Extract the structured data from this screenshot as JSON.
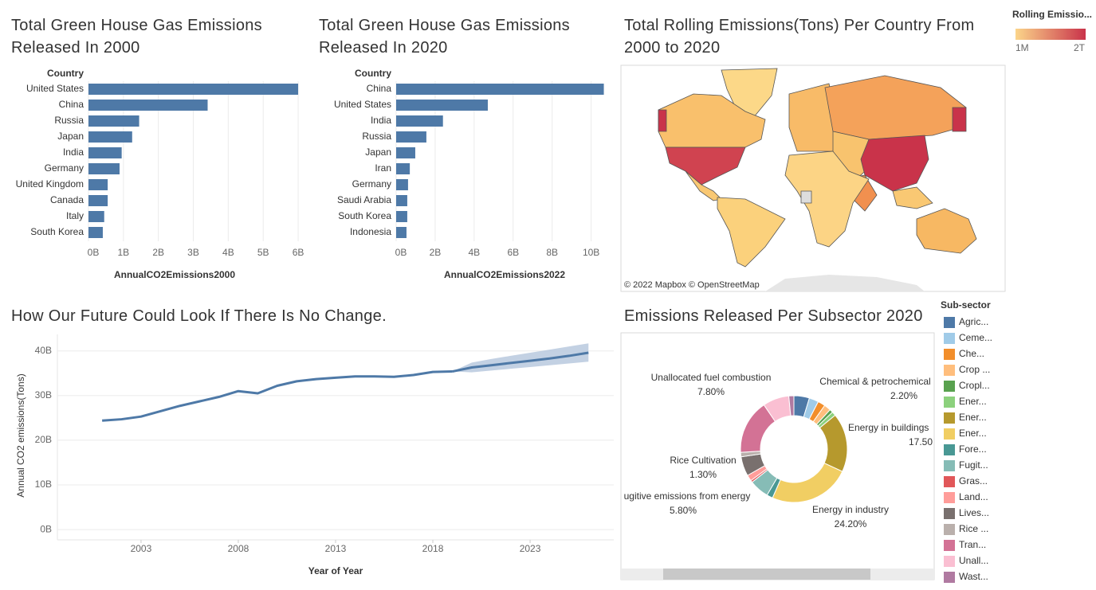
{
  "chart_data": [
    {
      "type": "bar",
      "title": "Total Green House Gas Emissions Released In 2000",
      "category_header": "Country",
      "categories": [
        "United States",
        "China",
        "Russia",
        "Japan",
        "India",
        "Germany",
        "United Kingdom",
        "Canada",
        "Italy",
        "South Korea"
      ],
      "values": [
        6000000000.0,
        3410000000.0,
        1450000000.0,
        1250000000.0,
        950000000.0,
        890000000.0,
        550000000.0,
        550000000.0,
        450000000.0,
        410000000.0
      ],
      "color": "#4e79a7",
      "xlim": [
        0,
        6250000000.0
      ],
      "xticks": [
        {
          "value": 0,
          "label": "0B"
        },
        {
          "value": 1000000000.0,
          "label": "1B"
        },
        {
          "value": 2000000000.0,
          "label": "2B"
        },
        {
          "value": 3000000000.0,
          "label": "3B"
        },
        {
          "value": 4000000000.0,
          "label": "4B"
        },
        {
          "value": 5000000000.0,
          "label": "5B"
        },
        {
          "value": 6000000000.0,
          "label": "6B"
        }
      ],
      "xlabel": "AnnualCO2Emissions2000",
      "grid": true
    },
    {
      "type": "bar",
      "title": "Total Green House Gas Emissions Released In 2020",
      "category_header": "Country",
      "categories": [
        "China",
        "United States",
        "India",
        "Russia",
        "Japan",
        "Iran",
        "Germany",
        "Saudi Arabia",
        "South Korea",
        "Indonesia"
      ],
      "values": [
        10650000000.0,
        4700000000.0,
        2400000000.0,
        1550000000.0,
        980000000.0,
        700000000.0,
        610000000.0,
        570000000.0,
        570000000.0,
        530000000.0
      ],
      "color": "#4e79a7",
      "xlim": [
        0,
        11200000000.0
      ],
      "xticks": [
        {
          "value": 0,
          "label": "0B"
        },
        {
          "value": 2000000000.0,
          "label": "2B"
        },
        {
          "value": 4000000000.0,
          "label": "4B"
        },
        {
          "value": 6000000000.0,
          "label": "6B"
        },
        {
          "value": 8000000000.0,
          "label": "8B"
        },
        {
          "value": 10000000000.0,
          "label": "10B"
        }
      ],
      "xlabel": "AnnualCO2Emissions2022",
      "grid": true
    },
    {
      "type": "map",
      "title": "Total Rolling Emissions(Tons) Per Country From 2000 to 2020",
      "legend_title": "Rolling Emissio...",
      "color_scale_labels": [
        "1M",
        "2T"
      ],
      "colors": [
        "#fbd58a",
        "#c9334a"
      ],
      "attribution": "© 2022 Mapbox  © OpenStreetMap"
    },
    {
      "type": "line",
      "title": "How Our Future Could Look If There Is No Change.",
      "x": [
        2001,
        2002,
        2003,
        2004,
        2005,
        2006,
        2007,
        2008,
        2009,
        2010,
        2011,
        2012,
        2013,
        2014,
        2015,
        2016,
        2017,
        2018,
        2019,
        2020,
        2021,
        2022,
        2023,
        2024,
        2025,
        2026
      ],
      "series": [
        {
          "color": "#4e79a7",
          "values": [
            24400000000.0,
            24700000000.0,
            25300000000.0,
            26500000000.0,
            27700000000.0,
            28700000000.0,
            29700000000.0,
            31000000000.0,
            30500000000.0,
            32200000000.0,
            33200000000.0,
            33700000000.0,
            34000000000.0,
            34300000000.0,
            34300000000.0,
            34200000000.0,
            34600000000.0,
            35300000000.0,
            35400000000.0,
            null,
            null,
            null,
            null,
            null,
            null,
            null
          ]
        },
        {
          "color": "#4e79a7",
          "values": [
            null,
            null,
            null,
            null,
            null,
            null,
            null,
            null,
            null,
            null,
            null,
            null,
            null,
            null,
            null,
            null,
            null,
            null,
            35400000000.0,
            36300000000.0,
            36800000000.0,
            37300000000.0,
            37800000000.0,
            38300000000.0,
            38900000000.0,
            39600000000.0
          ]
        }
      ],
      "band": {
        "color": "#b8c9de",
        "lower": [
          null,
          null,
          null,
          null,
          null,
          null,
          null,
          null,
          null,
          null,
          null,
          null,
          null,
          null,
          null,
          null,
          null,
          null,
          35400000000.0,
          35200000000.0,
          35600000000.0,
          36000000000.0,
          36400000000.0,
          36800000000.0,
          37200000000.0,
          37600000000.0
        ],
        "upper": [
          null,
          null,
          null,
          null,
          null,
          null,
          null,
          null,
          null,
          null,
          null,
          null,
          null,
          null,
          null,
          null,
          null,
          null,
          35400000000.0,
          37400000000.0,
          38200000000.0,
          38900000000.0,
          39600000000.0,
          40300000000.0,
          41000000000.0,
          41700000000.0
        ]
      },
      "xlim": [
        1998.7,
        2027.3
      ],
      "xticks": [
        2003,
        2008,
        2013,
        2018,
        2023
      ],
      "ylim": [
        -2300000000.0,
        43700000000.0
      ],
      "yticks": [
        {
          "value": 0,
          "label": "0B"
        },
        {
          "value": 10000000000.0,
          "label": "10B"
        },
        {
          "value": 20000000000.0,
          "label": "20B"
        },
        {
          "value": 30000000000.0,
          "label": "30B"
        },
        {
          "value": 40000000000.0,
          "label": "40B"
        }
      ],
      "xlabel": "Year of Year",
      "ylabel": "Annual CO2 emissions(Tons)",
      "grid": true
    },
    {
      "type": "pie",
      "donut": true,
      "title": "Emissions Released Per Subsector 2020",
      "legend_title": "Sub-sector",
      "categories": [
        "Agric...",
        "Ceme...",
        "Che...",
        "Crop ...",
        "Cropl...",
        "Ener...",
        "Ener...",
        "Ener...",
        "Fore...",
        "Fugit...",
        "Gras...",
        "Land...",
        "Lives...",
        "Rice ...",
        "Tran...",
        "Unall...",
        "Wast..."
      ],
      "values": [
        4.6,
        2.8,
        2.2,
        2.0,
        1.0,
        1.2,
        17.5,
        24.2,
        1.8,
        5.8,
        0.6,
        1.8,
        5.8,
        1.3,
        16.2,
        7.8,
        1.5
      ],
      "colors": [
        "#4e79a7",
        "#a0cbe8",
        "#f28e2b",
        "#ffbe7d",
        "#59a14f",
        "#8cd17d",
        "#b6992d",
        "#f1ce63",
        "#499894",
        "#86bcb6",
        "#e15759",
        "#ff9d9a",
        "#79706e",
        "#bab0ac",
        "#d37295",
        "#fabfd2",
        "#b07aa1"
      ],
      "slice_labels": [
        null,
        null,
        "Chemical & petrochemical",
        null,
        null,
        null,
        "Energy in buildings",
        "Energy in industry",
        null,
        "ugitive emissions from energy",
        null,
        null,
        null,
        "Rice Cultivation",
        null,
        "Unallocated fuel combustion",
        null
      ],
      "value_labels": [
        null,
        null,
        "2.20%",
        null,
        null,
        null,
        "17.50",
        "24.20%",
        null,
        "5.80%",
        null,
        null,
        null,
        "1.30%",
        null,
        "7.80%",
        null
      ]
    }
  ]
}
